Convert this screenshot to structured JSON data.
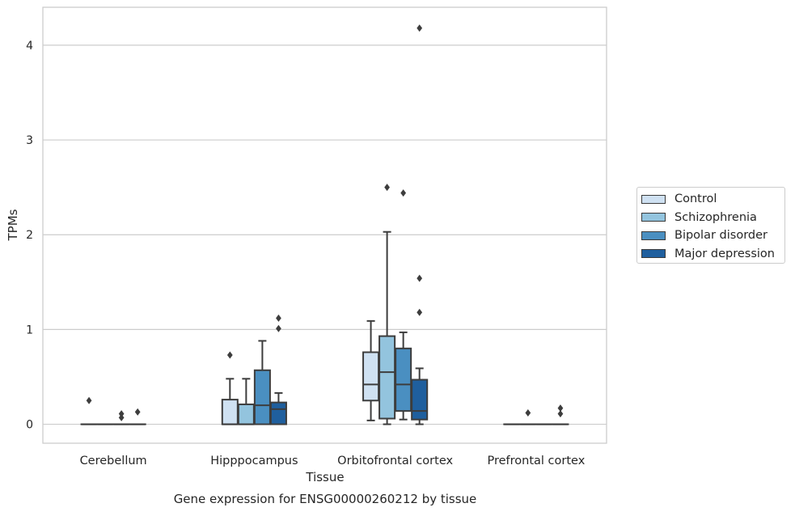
{
  "chart_data": {
    "type": "box",
    "caption": "Gene expression for ENSG00000260212 by tissue",
    "xlabel": "Tissue",
    "ylabel": "TPMs",
    "categories": [
      "Cerebellum",
      "Hipppocampus",
      "Orbitofrontal cortex",
      "Prefrontal cortex"
    ],
    "ylim": [
      -0.2,
      4.4
    ],
    "yticks": [
      "0",
      "1",
      "2",
      "3",
      "4"
    ],
    "grid": "horizontal",
    "legend_placement": "right, outside plot",
    "series": [
      {
        "name": "Control",
        "color": "#cfe1f2",
        "boxes": [
          {
            "q1": 0,
            "median": 0,
            "q3": 0,
            "whisker_low": 0,
            "whisker_high": 0,
            "outliers": [
              0.25
            ]
          },
          {
            "q1": 0,
            "median": 0,
            "q3": 0.26,
            "whisker_low": 0,
            "whisker_high": 0.48,
            "outliers": [
              0.73
            ]
          },
          {
            "q1": 0.25,
            "median": 0.42,
            "q3": 0.76,
            "whisker_low": 0.04,
            "whisker_high": 1.09,
            "outliers": []
          },
          {
            "q1": 0,
            "median": 0,
            "q3": 0,
            "whisker_low": 0,
            "whisker_high": 0,
            "outliers": []
          }
        ]
      },
      {
        "name": "Schizophrenia",
        "color": "#93c4de",
        "boxes": [
          {
            "q1": 0,
            "median": 0,
            "q3": 0,
            "whisker_low": 0,
            "whisker_high": 0,
            "outliers": []
          },
          {
            "q1": 0,
            "median": 0,
            "q3": 0.21,
            "whisker_low": 0,
            "whisker_high": 0.48,
            "outliers": []
          },
          {
            "q1": 0.06,
            "median": 0.55,
            "q3": 0.93,
            "whisker_low": 0,
            "whisker_high": 2.03,
            "outliers": [
              2.5
            ]
          },
          {
            "q1": 0,
            "median": 0,
            "q3": 0,
            "whisker_low": 0,
            "whisker_high": 0,
            "outliers": [
              0.12
            ]
          }
        ]
      },
      {
        "name": "Bipolar disorder",
        "color": "#4a8fc1",
        "boxes": [
          {
            "q1": 0,
            "median": 0,
            "q3": 0,
            "whisker_low": 0,
            "whisker_high": 0,
            "outliers": [
              0.07,
              0.11
            ]
          },
          {
            "q1": 0,
            "median": 0.2,
            "q3": 0.57,
            "whisker_low": 0,
            "whisker_high": 0.88,
            "outliers": []
          },
          {
            "q1": 0.14,
            "median": 0.42,
            "q3": 0.8,
            "whisker_low": 0.05,
            "whisker_high": 0.97,
            "outliers": [
              2.44
            ]
          },
          {
            "q1": 0,
            "median": 0,
            "q3": 0,
            "whisker_low": 0,
            "whisker_high": 0,
            "outliers": []
          }
        ]
      },
      {
        "name": "Major depression",
        "color": "#1f5f9e",
        "boxes": [
          {
            "q1": 0,
            "median": 0,
            "q3": 0,
            "whisker_low": 0,
            "whisker_high": 0,
            "outliers": [
              0.13
            ]
          },
          {
            "q1": 0,
            "median": 0.16,
            "q3": 0.23,
            "whisker_low": 0,
            "whisker_high": 0.33,
            "outliers": [
              1.01,
              1.12
            ]
          },
          {
            "q1": 0.05,
            "median": 0.14,
            "q3": 0.47,
            "whisker_low": 0,
            "whisker_high": 0.59,
            "outliers": [
              1.18,
              1.54,
              4.18
            ]
          },
          {
            "q1": 0,
            "median": 0,
            "q3": 0,
            "whisker_low": 0,
            "whisker_high": 0,
            "outliers": [
              0.11,
              0.17
            ]
          }
        ]
      }
    ]
  }
}
